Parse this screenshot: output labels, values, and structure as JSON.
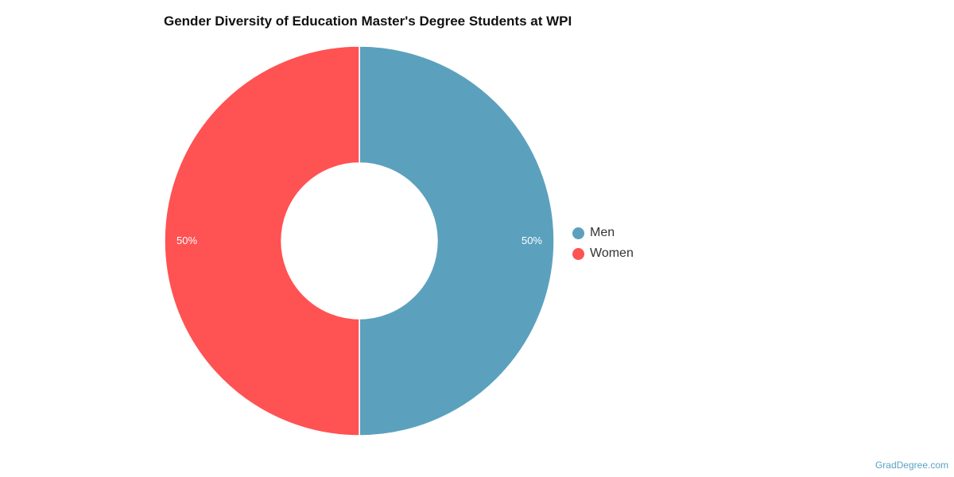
{
  "chart_data": {
    "type": "pie",
    "title": "Gender Diversity of Education Master's Degree Students at WPI",
    "donut": true,
    "categories": [
      "Men",
      "Women"
    ],
    "values": [
      50,
      50
    ],
    "value_labels": [
      "50%",
      "50%"
    ],
    "colors": [
      "#5ba1be",
      "#ff5253"
    ],
    "legend_position": "right"
  },
  "watermark": "GradDegree.com"
}
